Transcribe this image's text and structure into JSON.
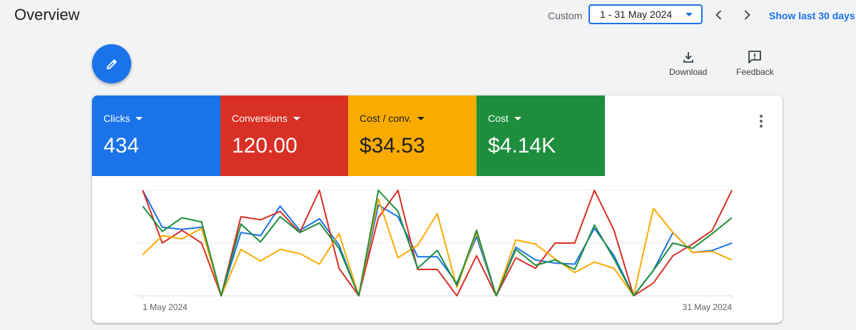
{
  "header": {
    "title": "Overview",
    "range_label": "Custom",
    "date_range": "1 - 31 May 2024",
    "show_last": "Show last 30 days"
  },
  "toolbar": {
    "download_label": "Download",
    "feedback_label": "Feedback"
  },
  "metrics": [
    {
      "name": "Clicks",
      "value": "434",
      "color": "#1a73e8"
    },
    {
      "name": "Conversions",
      "value": "120.00",
      "color": "#d93025"
    },
    {
      "name": "Cost / conv.",
      "value": "$34.53",
      "color": "#f9ab00"
    },
    {
      "name": "Cost",
      "value": "$4.14K",
      "color": "#1e8e3e"
    }
  ],
  "chart_data": {
    "type": "line",
    "x_start_label": "1 May 2024",
    "x_end_label": "31 May 2024",
    "ylim": [
      0,
      10
    ],
    "grid": true,
    "series": [
      {
        "name": "Clicks",
        "color": "#1a73e8",
        "values": [
          10,
          6.5,
          6.3,
          6.5,
          0,
          6,
          5.7,
          8.5,
          6.2,
          7.3,
          4.8,
          0,
          8.6,
          7.5,
          3.7,
          3.7,
          1.2,
          5.6,
          0,
          4.6,
          3.4,
          3.1,
          3.0,
          6.4,
          3.8,
          0,
          2.4,
          6.0,
          4.1,
          4.3,
          5.0
        ]
      },
      {
        "name": "Conversions",
        "color": "#d93025",
        "values": [
          10,
          5.0,
          6.2,
          5.0,
          0,
          7.5,
          7.2,
          8.0,
          6.0,
          10,
          2.6,
          0,
          7.4,
          10,
          2.5,
          2.5,
          0,
          3.8,
          0,
          3.6,
          2.6,
          5.0,
          5.0,
          10,
          6.2,
          0,
          1.2,
          3.8,
          4.9,
          6.2,
          10
        ]
      },
      {
        "name": "Cost / conv.",
        "color": "#f9ab00",
        "values": [
          3.9,
          5.7,
          5.4,
          6.4,
          0,
          4.4,
          3.3,
          4.4,
          4.0,
          3.0,
          5.9,
          0,
          9.2,
          3.6,
          4.8,
          7.8,
          0.8,
          6.0,
          0,
          5.3,
          4.9,
          3.5,
          2.2,
          3.2,
          2.6,
          0,
          8.3,
          6.0,
          4.1,
          4.2,
          3.4
        ]
      },
      {
        "name": "Cost",
        "color": "#1e8e3e",
        "values": [
          8.5,
          6.1,
          7.4,
          7.0,
          0,
          6.8,
          5.1,
          7.5,
          6.0,
          6.9,
          4.5,
          0,
          10,
          8.0,
          2.6,
          4.3,
          1.0,
          6.2,
          0,
          4.4,
          2.9,
          3.4,
          2.5,
          6.7,
          3.5,
          0,
          2.4,
          5.0,
          4.5,
          5.9,
          7.4
        ]
      }
    ]
  }
}
